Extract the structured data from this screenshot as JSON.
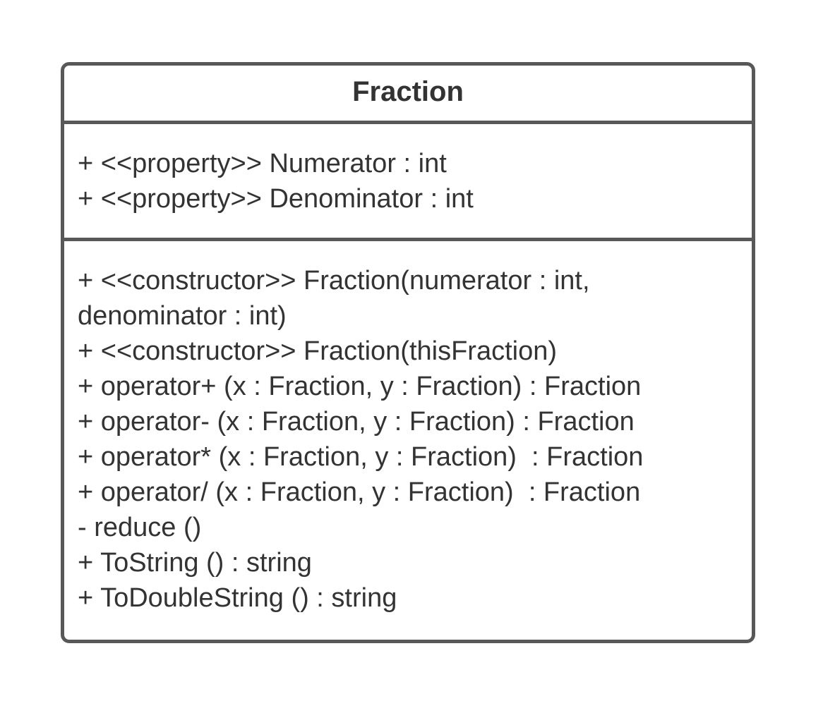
{
  "uml_class": {
    "name": "Fraction",
    "attributes": [
      "+ <<property>> Numerator : int",
      "+ <<property>> Denominator : int"
    ],
    "operations": [
      "+ <<constructor>> Fraction(numerator : int,",
      "denominator : int)",
      "+ <<constructor>> Fraction(thisFraction)",
      "+ operator+ (x : Fraction, y : Fraction) : Fraction",
      "+ operator- (x : Fraction, y : Fraction) : Fraction",
      "+ operator* (x : Fraction, y : Fraction)  : Fraction",
      "+ operator/ (x : Fraction, y : Fraction)  : Fraction",
      "- reduce ()",
      "+ ToString () : string",
      "+ ToDoubleString () : string"
    ]
  },
  "colors": {
    "border": "#585858",
    "text": "#333333",
    "background": "#ffffff"
  }
}
